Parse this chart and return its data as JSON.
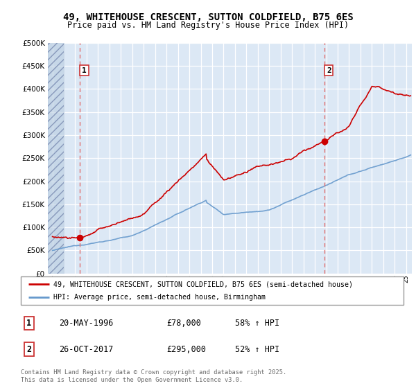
{
  "title": "49, WHITEHOUSE CRESCENT, SUTTON COLDFIELD, B75 6ES",
  "subtitle": "Price paid vs. HM Land Registry's House Price Index (HPI)",
  "plot_bg_color": "#dce8f5",
  "ylim": [
    0,
    500000
  ],
  "yticks": [
    0,
    50000,
    100000,
    150000,
    200000,
    250000,
    300000,
    350000,
    400000,
    450000,
    500000
  ],
  "xlim_start": 1993.6,
  "xlim_end": 2025.5,
  "sale1_year": 1996.38,
  "sale1_price": 78000,
  "sale2_year": 2017.82,
  "sale2_price": 295000,
  "legend_line1": "49, WHITEHOUSE CRESCENT, SUTTON COLDFIELD, B75 6ES (semi-detached house)",
  "legend_line2": "HPI: Average price, semi-detached house, Birmingham",
  "footer": "Contains HM Land Registry data © Crown copyright and database right 2025.\nThis data is licensed under the Open Government Licence v3.0.",
  "line_color": "#cc0000",
  "hpi_color": "#6699cc",
  "vline_color": "#e07070",
  "table_row1": [
    "1",
    "20-MAY-1996",
    "£78,000",
    "58% ↑ HPI"
  ],
  "table_row2": [
    "2",
    "26-OCT-2017",
    "£295,000",
    "52% ↑ HPI"
  ]
}
